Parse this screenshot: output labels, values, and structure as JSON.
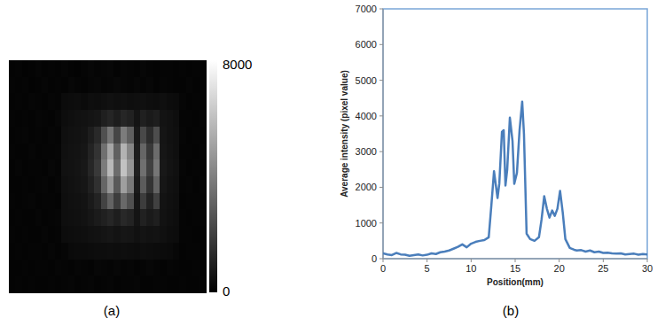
{
  "chart_data": [
    {
      "type": "heatmap",
      "caption": "(a)",
      "tick_labels": false,
      "color_range": [
        0,
        8000
      ],
      "color_ticks": [
        0,
        8000
      ],
      "cells": [
        [
          110,
          160,
          90,
          140,
          180,
          120,
          150,
          130,
          200,
          140,
          100,
          170,
          210,
          150,
          180,
          230,
          140,
          200,
          170,
          130,
          210,
          160,
          120,
          170,
          150,
          110,
          160,
          130,
          150,
          120
        ],
        [
          150,
          120,
          170,
          100,
          140,
          190,
          130,
          160,
          120,
          210,
          170,
          140,
          190,
          220,
          160,
          200,
          250,
          180,
          150,
          210,
          170,
          230,
          140,
          190,
          160,
          130,
          120,
          180,
          140,
          110
        ],
        [
          130,
          170,
          110,
          190,
          150,
          120,
          200,
          160,
          340,
          380,
          420,
          360,
          450,
          400,
          480,
          520,
          460,
          500,
          430,
          470,
          510,
          440,
          400,
          460,
          380,
          350,
          190,
          140,
          170,
          130
        ],
        [
          160,
          110,
          150,
          130,
          180,
          170,
          140,
          210,
          420,
          480,
          520,
          560,
          640,
          700,
          980,
          1150,
          920,
          1200,
          1050,
          640,
          1000,
          820,
          950,
          600,
          520,
          430,
          170,
          150,
          120,
          160
        ],
        [
          120,
          150,
          180,
          110,
          160,
          140,
          190,
          150,
          460,
          520,
          560,
          620,
          900,
          1300,
          2500,
          3700,
          2200,
          3900,
          3000,
          800,
          2300,
          1400,
          2400,
          650,
          520,
          470,
          180,
          130,
          160,
          140
        ],
        [
          170,
          130,
          140,
          190,
          120,
          160,
          150,
          200,
          500,
          550,
          600,
          700,
          1100,
          1600,
          3500,
          5200,
          3000,
          5600,
          4200,
          900,
          3200,
          1800,
          3400,
          700,
          560,
          480,
          150,
          170,
          130,
          150
        ],
        [
          140,
          180,
          120,
          150,
          170,
          130,
          210,
          160,
          520,
          580,
          640,
          760,
          1200,
          1800,
          3900,
          5800,
          3400,
          6100,
          4700,
          1000,
          3500,
          2000,
          3700,
          760,
          600,
          500,
          190,
          140,
          170,
          120
        ],
        [
          130,
          140,
          170,
          120,
          150,
          190,
          140,
          180,
          480,
          540,
          590,
          680,
          1000,
          1500,
          3200,
          4700,
          2800,
          5000,
          3800,
          850,
          2900,
          1600,
          3100,
          680,
          540,
          460,
          160,
          180,
          120,
          150
        ],
        [
          160,
          120,
          150,
          180,
          130,
          150,
          170,
          140,
          450,
          500,
          540,
          600,
          800,
          1100,
          2100,
          3100,
          1900,
          3300,
          2500,
          700,
          1900,
          1100,
          2000,
          600,
          500,
          440,
          140,
          150,
          170,
          130
        ],
        [
          110,
          170,
          130,
          140,
          190,
          120,
          160,
          200,
          430,
          470,
          510,
          560,
          700,
          850,
          1000,
          1200,
          950,
          1250,
          1100,
          620,
          1050,
          800,
          980,
          580,
          480,
          420,
          170,
          130,
          150,
          160
        ],
        [
          150,
          130,
          160,
          120,
          140,
          180,
          130,
          150,
          380,
          420,
          450,
          480,
          520,
          560,
          620,
          680,
          600,
          700,
          650,
          540,
          640,
          580,
          600,
          500,
          420,
          380,
          150,
          160,
          120,
          140
        ],
        [
          130,
          160,
          120,
          170,
          150,
          110,
          190,
          140,
          200,
          300,
          340,
          360,
          380,
          400,
          420,
          450,
          410,
          440,
          420,
          390,
          430,
          400,
          380,
          360,
          300,
          220,
          130,
          150,
          170,
          120
        ],
        [
          140,
          110,
          150,
          130,
          170,
          160,
          120,
          180,
          150,
          130,
          200,
          170,
          140,
          210,
          180,
          150,
          230,
          160,
          190,
          140,
          170,
          210,
          150,
          130,
          180,
          160,
          140,
          120,
          150,
          130
        ],
        [
          120,
          150,
          130,
          160,
          110,
          140,
          170,
          130,
          160,
          190,
          120,
          150,
          180,
          140,
          170,
          200,
          130,
          160,
          150,
          180,
          140,
          120,
          170,
          150,
          110,
          140,
          160,
          130,
          120,
          150
        ]
      ]
    },
    {
      "type": "line",
      "caption": "(b)",
      "color": "#4a7ebb",
      "x_label": "Position(mm)",
      "y_label": "Average intensity (pixel value)",
      "xlim": [
        0,
        30
      ],
      "xticks": [
        0,
        5,
        10,
        15,
        20,
        25,
        30
      ],
      "ylim": [
        0,
        7000
      ],
      "yticks": [
        0,
        1000,
        2000,
        3000,
        4000,
        5000,
        6000,
        7000
      ],
      "x": [
        0,
        0.5,
        1,
        1.5,
        2,
        2.5,
        3,
        3.5,
        4,
        4.5,
        5,
        5.5,
        6,
        6.5,
        7,
        7.5,
        8,
        8.5,
        9,
        9.5,
        10,
        10.5,
        11,
        11.5,
        12,
        12.3,
        12.6,
        13.0,
        13.2,
        13.5,
        13.7,
        13.9,
        14.1,
        14.4,
        14.7,
        14.9,
        15.2,
        15.5,
        15.8,
        16.0,
        16.3,
        16.7,
        17.2,
        17.7,
        18.0,
        18.3,
        18.6,
        18.9,
        19.2,
        19.5,
        19.8,
        20.1,
        20.4,
        20.7,
        21.2,
        21.7,
        22,
        22.5,
        23,
        23.5,
        24,
        24.5,
        25,
        25.5,
        26,
        26.5,
        27,
        27.5,
        28,
        28.5,
        29,
        29.5,
        30
      ],
      "values": [
        150,
        120,
        100,
        160,
        120,
        110,
        80,
        100,
        120,
        90,
        110,
        150,
        130,
        180,
        200,
        230,
        280,
        330,
        400,
        320,
        420,
        470,
        500,
        520,
        600,
        1500,
        2450,
        1700,
        2100,
        3550,
        3600,
        2050,
        2500,
        3950,
        3300,
        2100,
        2400,
        3600,
        4400,
        3500,
        700,
        550,
        500,
        600,
        1100,
        1750,
        1400,
        1150,
        1350,
        1200,
        1400,
        1900,
        1300,
        550,
        300,
        250,
        230,
        240,
        200,
        230,
        180,
        200,
        160,
        170,
        150,
        140,
        150,
        120,
        130,
        140,
        110,
        130,
        120
      ]
    }
  ]
}
